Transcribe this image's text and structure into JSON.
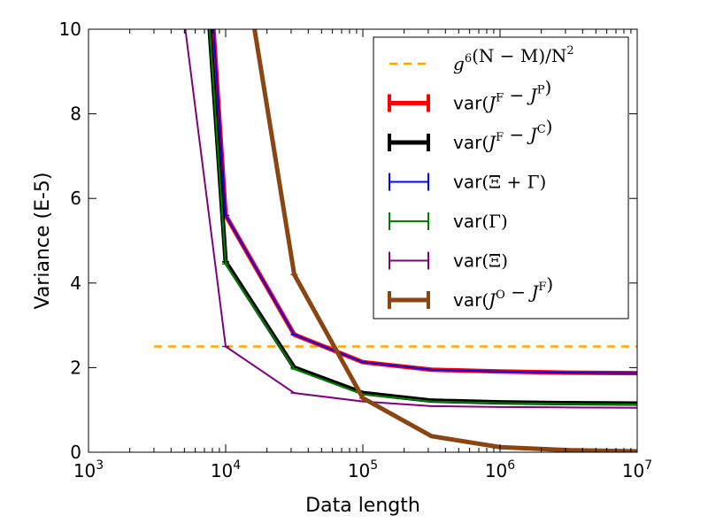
{
  "chart_data": {
    "type": "line",
    "xlabel": "Data length",
    "ylabel": "Variance (E-5)",
    "xscale": "log",
    "xlim": [
      1000,
      10000000
    ],
    "ylim": [
      0,
      10
    ],
    "xticks": [
      1000,
      10000,
      100000,
      1000000,
      10000000
    ],
    "xtick_labels": [
      {
        "base": "10",
        "exp": "3"
      },
      {
        "base": "10",
        "exp": "4"
      },
      {
        "base": "10",
        "exp": "5"
      },
      {
        "base": "10",
        "exp": "6"
      },
      {
        "base": "10",
        "exp": "7"
      }
    ],
    "yticks": [
      0,
      2,
      4,
      6,
      8,
      10
    ],
    "ytick_labels": [
      "0",
      "2",
      "4",
      "6",
      "8",
      "10"
    ],
    "legend_position": "upper right",
    "grid": false,
    "series": [
      {
        "name": "g^6(N-M)/N^2",
        "legend_parts": [
          [
            "i",
            "g"
          ],
          [
            "sup",
            "6"
          ],
          [
            "n",
            "(N − M)/N"
          ],
          [
            "sup",
            "2"
          ]
        ],
        "color": "#ffa500",
        "style": "dashed",
        "width": 2.5,
        "errorbar": false,
        "x": [
          3000,
          10000000
        ],
        "y": [
          2.5,
          2.5
        ]
      },
      {
        "name": "var(J^F - J^P)",
        "legend_parts": [
          [
            "s",
            "var"
          ],
          [
            "n",
            "("
          ],
          [
            "i",
            "J"
          ],
          [
            "sup",
            "F"
          ],
          [
            "n",
            " − "
          ],
          [
            "i",
            "J"
          ],
          [
            "sup",
            "P"
          ],
          [
            "n",
            ")"
          ]
        ],
        "color": "#ff0000",
        "style": "solid",
        "width": 5,
        "errorbar": true,
        "x": [
          8000,
          10000,
          31623,
          100000,
          316228,
          1000000,
          3162278,
          10000000
        ],
        "y": [
          10.4,
          5.6,
          2.78,
          2.13,
          1.95,
          1.91,
          1.88,
          1.87
        ]
      },
      {
        "name": "var(J^F - J^C)",
        "legend_parts": [
          [
            "s",
            "var"
          ],
          [
            "n",
            "("
          ],
          [
            "i",
            "J"
          ],
          [
            "sup",
            "F"
          ],
          [
            "n",
            " − "
          ],
          [
            "i",
            "J"
          ],
          [
            "sup",
            "C"
          ],
          [
            "n",
            ")"
          ]
        ],
        "color": "#000000",
        "style": "solid",
        "width": 5,
        "errorbar": true,
        "x": [
          7500,
          10000,
          31623,
          100000,
          316228,
          1000000,
          3162278,
          10000000
        ],
        "y": [
          10.4,
          4.5,
          2.0,
          1.4,
          1.22,
          1.18,
          1.16,
          1.15
        ]
      },
      {
        "name": "var(Ξ + Γ)",
        "legend_parts": [
          [
            "s",
            "var"
          ],
          [
            "n",
            "(Ξ + Γ)"
          ]
        ],
        "color": "#0000ff",
        "style": "solid",
        "width": 2,
        "errorbar": true,
        "x": [
          8000,
          10000,
          31623,
          100000,
          316228,
          1000000,
          3162278,
          10000000
        ],
        "y": [
          10.4,
          5.6,
          2.78,
          2.13,
          1.95,
          1.91,
          1.88,
          1.87
        ]
      },
      {
        "name": "var(Γ)",
        "legend_parts": [
          [
            "s",
            "var"
          ],
          [
            "n",
            "(Γ)"
          ]
        ],
        "color": "#008000",
        "style": "solid",
        "width": 2,
        "errorbar": true,
        "x": [
          7500,
          10000,
          31623,
          100000,
          316228,
          1000000,
          3162278,
          10000000
        ],
        "y": [
          10.4,
          4.45,
          1.97,
          1.37,
          1.2,
          1.16,
          1.14,
          1.13
        ]
      },
      {
        "name": "var(Ξ)",
        "legend_parts": [
          [
            "s",
            "var"
          ],
          [
            "n",
            "(Ξ)"
          ]
        ],
        "color": "#800080",
        "style": "solid",
        "width": 2,
        "errorbar": true,
        "x": [
          4900,
          10000,
          31623,
          100000,
          316228,
          1000000,
          3162278,
          10000000
        ],
        "y": [
          10.4,
          2.5,
          1.4,
          1.2,
          1.09,
          1.07,
          1.06,
          1.05
        ]
      },
      {
        "name": "var(J^O - J^F)",
        "legend_parts": [
          [
            "s",
            "var"
          ],
          [
            "n",
            "("
          ],
          [
            "i",
            "J"
          ],
          [
            "sup",
            "O"
          ],
          [
            "n",
            " − "
          ],
          [
            "i",
            "J"
          ],
          [
            "sup",
            "F"
          ],
          [
            "n",
            ")"
          ]
        ],
        "color": "#8b4513",
        "style": "solid",
        "width": 5,
        "errorbar": true,
        "x": [
          15500,
          31623,
          100000,
          316228,
          1000000,
          3162278,
          10000000
        ],
        "y": [
          10.4,
          4.2,
          1.28,
          0.38,
          0.12,
          0.05,
          0.02
        ]
      }
    ]
  }
}
